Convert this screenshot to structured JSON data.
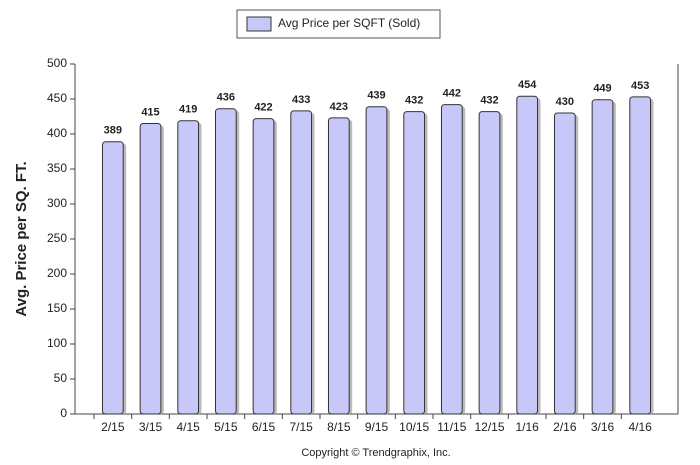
{
  "chart_data": {
    "type": "bar",
    "legend_label": "Avg Price per SQFT (Sold)",
    "y_label": "Avg. Price per SQ. FT.",
    "footer": "Copyright © Trendgraphix, Inc.",
    "categories": [
      "2/15",
      "3/15",
      "4/15",
      "5/15",
      "6/15",
      "7/15",
      "8/15",
      "9/15",
      "10/15",
      "11/15",
      "12/15",
      "1/16",
      "2/16",
      "3/16",
      "4/16"
    ],
    "values": [
      389,
      415,
      419,
      436,
      422,
      433,
      423,
      439,
      432,
      442,
      432,
      454,
      430,
      449,
      453
    ],
    "color": "#c8c8f8",
    "ylim": [
      0,
      500
    ],
    "yticks": [
      0,
      50,
      100,
      150,
      200,
      250,
      300,
      350,
      400,
      450,
      500
    ],
    "grid": false
  }
}
